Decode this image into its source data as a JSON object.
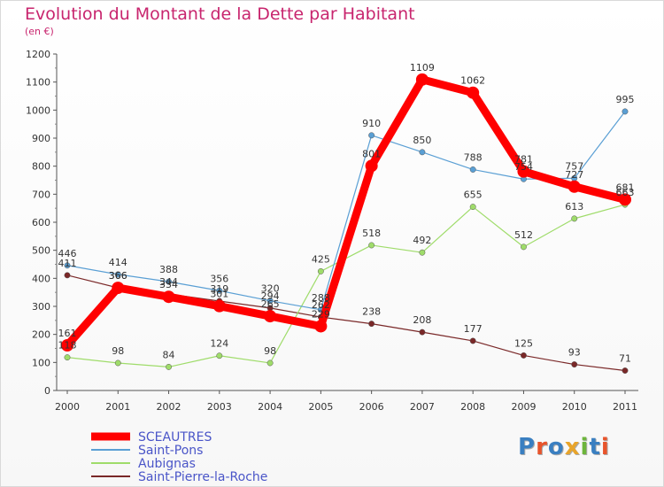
{
  "title": "Evolution du Montant de la Dette par Habitant",
  "subtitle": "(en €)",
  "logo": {
    "text": "Proxiti",
    "colors": [
      "#3a7fc1",
      "#e8542b",
      "#3a7fc1",
      "#e8a42b",
      "#6db53c",
      "#3a7fc1",
      "#e8542b"
    ]
  },
  "chart_data": {
    "type": "line",
    "x": [
      2000,
      2001,
      2002,
      2003,
      2004,
      2005,
      2006,
      2007,
      2008,
      2009,
      2010,
      2011
    ],
    "ylim": [
      0,
      1200
    ],
    "yticks": [
      0,
      100,
      200,
      300,
      400,
      500,
      600,
      700,
      800,
      900,
      1000,
      1100,
      1200
    ],
    "grid": false,
    "legend_position": "bottom-left",
    "series": [
      {
        "name": "SCEAUTRES",
        "color": "#ff0000",
        "values": [
          161,
          366,
          334,
          301,
          265,
          229,
          801,
          1109,
          1062,
          781,
          727,
          681
        ]
      },
      {
        "name": "Saint-Pons",
        "color": "#5a9fd4",
        "values": [
          446,
          414,
          388,
          356,
          320,
          288,
          910,
          850,
          788,
          754,
          757,
          995
        ]
      },
      {
        "name": "Aubignas",
        "color": "#9fdc6a",
        "values": [
          118,
          98,
          84,
          124,
          98,
          425,
          518,
          492,
          655,
          512,
          613,
          663
        ]
      },
      {
        "name": "Saint-Pierre-la-Roche",
        "color": "#7a2828",
        "values": [
          411,
          366,
          344,
          319,
          294,
          262,
          238,
          208,
          177,
          125,
          93,
          71
        ]
      }
    ]
  }
}
